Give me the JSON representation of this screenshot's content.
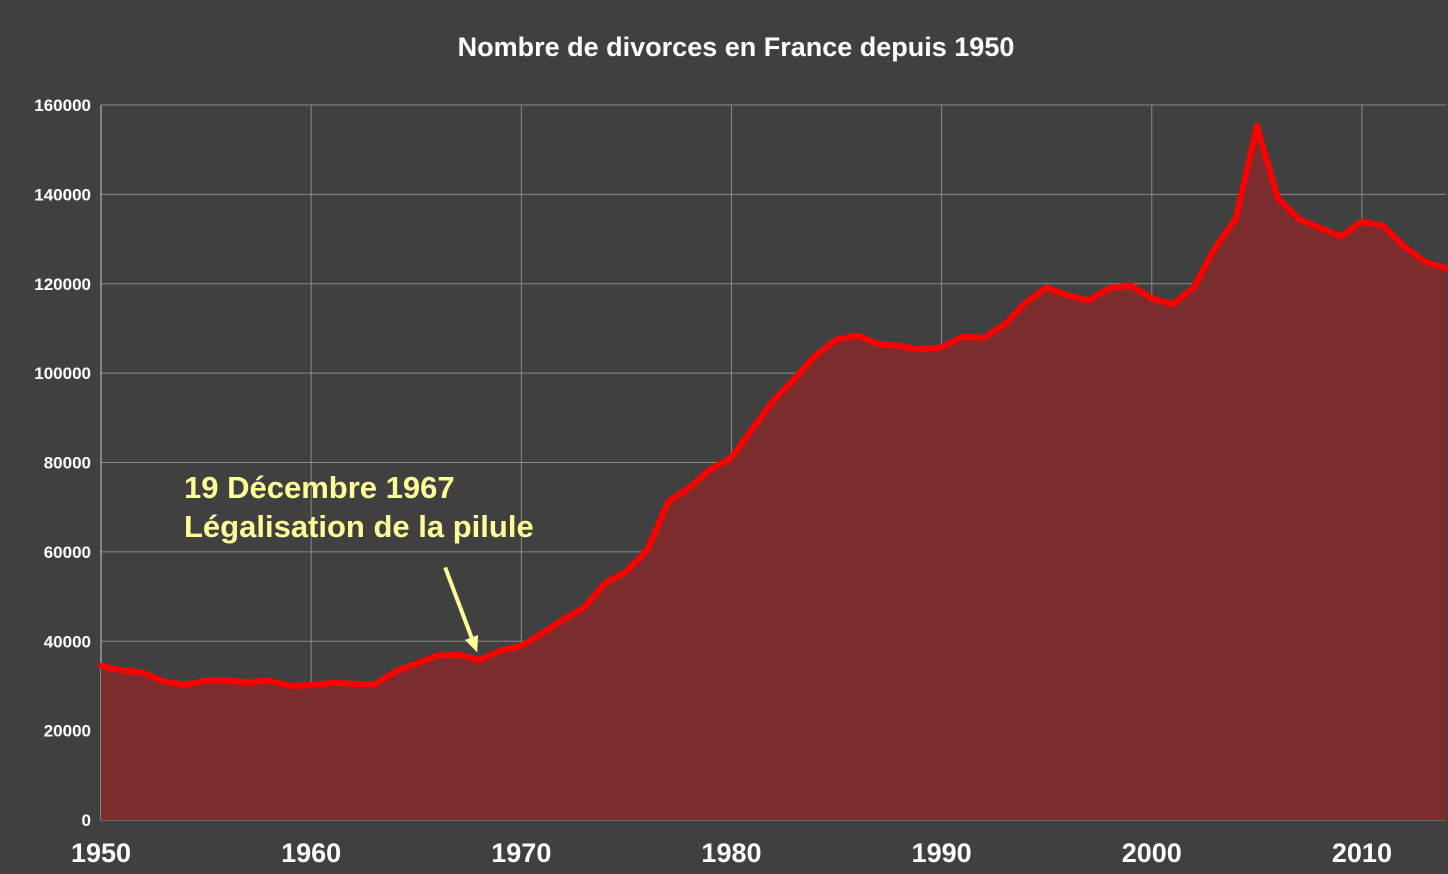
{
  "chart_data": {
    "type": "area",
    "title": "Nombre de divorces en France depuis 1950",
    "xlabel": "",
    "ylabel": "",
    "xlim": [
      1950,
      2014
    ],
    "ylim": [
      0,
      160000
    ],
    "x_ticks": [
      "1950",
      "1960",
      "1970",
      "1980",
      "1990",
      "2000",
      "2010"
    ],
    "y_ticks": [
      "0",
      "20000",
      "40000",
      "60000",
      "80000",
      "100000",
      "120000",
      "140000",
      "160000"
    ],
    "grid": true,
    "legend": "none",
    "colors": {
      "background": "#404040",
      "line": "#ff0000",
      "fill": "#7b2d2e",
      "grid": "#8a8a8a",
      "annotation": "#ffff99"
    },
    "series": [
      {
        "x": [
          1950,
          1951,
          1952,
          1953,
          1954,
          1955,
          1956,
          1957,
          1958,
          1959,
          1960,
          1961,
          1962,
          1963,
          1964,
          1965,
          1966,
          1967,
          1968,
          1969,
          1970,
          1971,
          1972,
          1973,
          1974,
          1975,
          1976,
          1977,
          1978,
          1979,
          1980,
          1981,
          1982,
          1983,
          1984,
          1985,
          1986,
          1987,
          1988,
          1989,
          1990,
          1991,
          1992,
          1993,
          1994,
          1995,
          1996,
          1997,
          1998,
          1999,
          2000,
          2001,
          2002,
          2003,
          2004,
          2005,
          2006,
          2007,
          2008,
          2009,
          2010,
          2011,
          2012,
          2013,
          2014
        ],
        "values": [
          34500,
          33500,
          33000,
          31000,
          30300,
          31200,
          31200,
          30800,
          31200,
          30000,
          30200,
          30700,
          30500,
          30300,
          33200,
          35000,
          36800,
          37000,
          35800,
          37900,
          39000,
          41800,
          44900,
          47600,
          53100,
          55600,
          60500,
          71300,
          74400,
          78500,
          81100,
          87600,
          93900,
          98700,
          104000,
          107500,
          108400,
          106500,
          106100,
          105300,
          105800,
          108100,
          107900,
          110900,
          115800,
          119200,
          117400,
          116300,
          119100,
          119600,
          116800,
          115400,
          119200,
          128000,
          134600,
          155300,
          139100,
          134500,
          132500,
          130600,
          133900,
          133000,
          128400,
          124900,
          123500
        ]
      }
    ],
    "annotation": {
      "line1": "19 Décembre 1967",
      "line2": "Légalisation de la pilule",
      "x": 1967.9,
      "y": 37500
    }
  }
}
